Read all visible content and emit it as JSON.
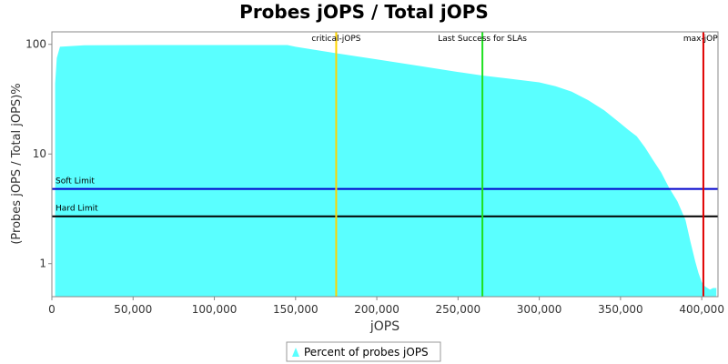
{
  "chart_data": {
    "type": "area",
    "title": "Probes jOPS / Total jOPS",
    "xlabel": "jOPS",
    "ylabel": "(Probes jOPS / Total jOPS)%",
    "xlim": [
      0,
      410000
    ],
    "ylim": [
      0.5,
      130
    ],
    "yscale": "log",
    "grid": false,
    "legend_position": "bottom",
    "x_ticks": [
      0,
      50000,
      100000,
      150000,
      200000,
      250000,
      300000,
      350000,
      400000
    ],
    "x_tick_labels": [
      "0",
      "50,000",
      "100,000",
      "150,000",
      "200,000",
      "250,000",
      "300,000",
      "350,000",
      "400,000"
    ],
    "y_ticks": [
      1,
      10,
      100
    ],
    "y_tick_labels": [
      "1",
      "10",
      "100"
    ],
    "series": [
      {
        "name": "Percent of probes jOPS",
        "color": "#5AFFFF",
        "x": [
          2000,
          3000,
          5000,
          20000,
          60000,
          100000,
          145000,
          150000,
          175000,
          200000,
          225000,
          250000,
          265000,
          280000,
          300000,
          310000,
          320000,
          330000,
          340000,
          350000,
          355000,
          360000,
          365000,
          370000,
          375000,
          380000,
          385000,
          390000,
          393000,
          396000,
          398000,
          400000,
          402000,
          405000,
          407000,
          409000
        ],
        "y": [
          44,
          75,
          95,
          98,
          98.5,
          98.5,
          98.5,
          95,
          83,
          73,
          64,
          56,
          52,
          49,
          45,
          41.5,
          37,
          31,
          25,
          19,
          16.5,
          14.5,
          11.5,
          8.8,
          6.8,
          4.9,
          3.7,
          2.5,
          1.6,
          1.05,
          0.82,
          0.68,
          0.62,
          0.58,
          0.6,
          0.6
        ]
      }
    ],
    "markers": {
      "vertical": [
        {
          "label": "critical-jOPS",
          "x": 175000,
          "color": "#FFD400"
        },
        {
          "label": "Last Success for SLAs",
          "x": 265000,
          "color": "#1EE01E"
        },
        {
          "label": "max-jOP",
          "x": 401000,
          "color": "#E00000"
        }
      ],
      "horizontal": [
        {
          "label": "Soft Limit",
          "y": 4.8,
          "color": "#0000CC"
        },
        {
          "label": "Hard Limit",
          "y": 2.7,
          "color": "#000000"
        }
      ]
    }
  }
}
